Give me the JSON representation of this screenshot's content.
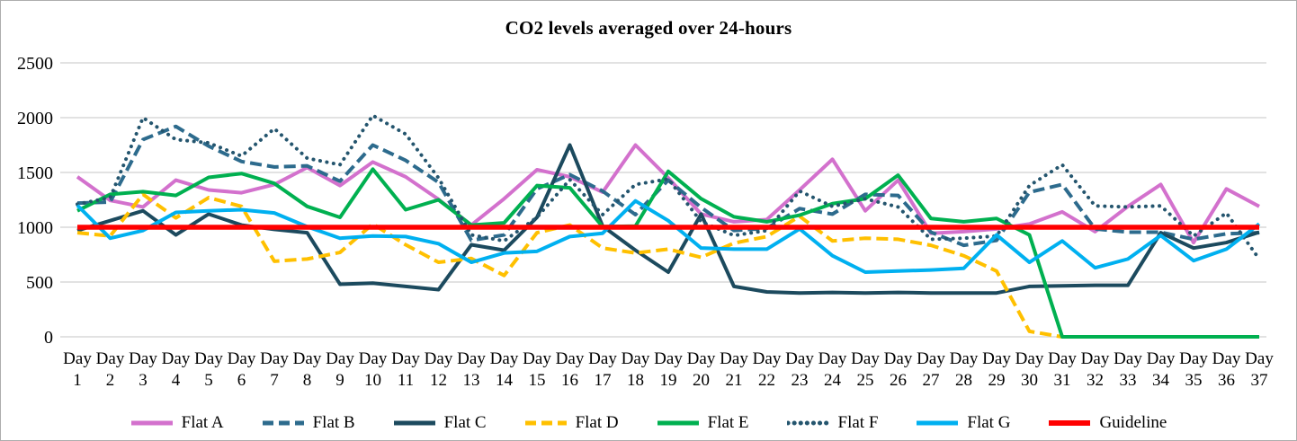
{
  "chart_data": {
    "type": "line",
    "title": "CO2 levels averaged over 24-hours",
    "x_label_prefix": "Day",
    "categories": [
      1,
      2,
      3,
      4,
      5,
      6,
      7,
      8,
      9,
      10,
      11,
      12,
      13,
      14,
      15,
      16,
      17,
      18,
      19,
      20,
      21,
      22,
      23,
      24,
      25,
      26,
      27,
      28,
      29,
      30,
      31,
      32,
      33,
      34,
      35,
      36,
      37
    ],
    "ylim": [
      0,
      2500
    ],
    "y_ticks": [
      0,
      500,
      1000,
      1500,
      2000,
      2500
    ],
    "grid": "horizontal",
    "grid_color": "#d9d9d9",
    "legend_position": "bottom",
    "guideline_value": 1000,
    "series": [
      {
        "name": "Flat A",
        "color": "#d371cd",
        "style": "solid",
        "values": [
          1460,
          1245,
          1185,
          1430,
          1340,
          1315,
          1390,
          1545,
          1380,
          1595,
          1460,
          1255,
          1020,
          1260,
          1525,
          1460,
          1320,
          1750,
          1450,
          1120,
          1050,
          1070,
          1340,
          1620,
          1150,
          1430,
          945,
          960,
          985,
          1030,
          1140,
          960,
          1190,
          1390,
          860,
          1350,
          1190
        ]
      },
      {
        "name": "Flat B",
        "color": "#2d6b8d",
        "style": "dashed",
        "values": [
          1220,
          1230,
          1800,
          1920,
          1740,
          1600,
          1550,
          1560,
          1420,
          1750,
          1610,
          1410,
          880,
          930,
          1350,
          1480,
          1330,
          1115,
          1430,
          1180,
          970,
          990,
          1170,
          1120,
          1300,
          1290,
          955,
          835,
          880,
          1320,
          1390,
          985,
          955,
          955,
          890,
          940,
          950
        ]
      },
      {
        "name": "Flat C",
        "color": "#1c4a5e",
        "style": "solid",
        "values": [
          970,
          1060,
          1150,
          930,
          1120,
          1020,
          980,
          950,
          480,
          490,
          460,
          430,
          840,
          790,
          1090,
          1750,
          1010,
          790,
          590,
          1120,
          460,
          410,
          400,
          405,
          400,
          405,
          400,
          400,
          400,
          460,
          465,
          470,
          470,
          950,
          810,
          860,
          955
        ]
      },
      {
        "name": "Flat D",
        "color": "#ffc000",
        "style": "dashed",
        "values": [
          950,
          920,
          1300,
          1085,
          1270,
          1190,
          690,
          710,
          770,
          1030,
          840,
          680,
          715,
          560,
          950,
          1020,
          810,
          765,
          800,
          725,
          855,
          915,
          1100,
          875,
          900,
          890,
          835,
          740,
          600,
          50,
          0,
          null,
          null,
          null,
          null,
          null,
          null
        ]
      },
      {
        "name": "Flat E",
        "color": "#00b050",
        "style": "solid",
        "values": [
          1150,
          1300,
          1325,
          1290,
          1455,
          1490,
          1400,
          1190,
          1090,
          1530,
          1160,
          1250,
          1020,
          1040,
          1380,
          1360,
          1005,
          1010,
          1510,
          1260,
          1095,
          1050,
          1110,
          1215,
          1260,
          1475,
          1080,
          1050,
          1080,
          930,
          0,
          0,
          0,
          0,
          0,
          0,
          0
        ]
      },
      {
        "name": "Flat F",
        "color": "#24556e",
        "style": "dotted",
        "values": [
          1210,
          1270,
          2000,
          1800,
          1770,
          1650,
          1900,
          1630,
          1570,
          2020,
          1850,
          1450,
          930,
          875,
          1090,
          1435,
          1115,
          1390,
          1440,
          1050,
          925,
          970,
          1330,
          1190,
          1260,
          1185,
          890,
          900,
          920,
          1380,
          1570,
          1195,
          1185,
          1195,
          920,
          1130,
          710
        ]
      },
      {
        "name": "Flat G",
        "color": "#00b0f0",
        "style": "solid",
        "values": [
          1200,
          900,
          970,
          1135,
          1150,
          1160,
          1130,
          1005,
          900,
          920,
          915,
          850,
          680,
          765,
          780,
          915,
          945,
          1240,
          1060,
          810,
          800,
          800,
          985,
          740,
          590,
          600,
          610,
          625,
          930,
          680,
          875,
          630,
          710,
          925,
          695,
          800,
          1030
        ]
      },
      {
        "name": "Guideline",
        "color": "#ff0000",
        "style": "solid",
        "is_guideline": true,
        "values": [
          1000,
          1000,
          1000,
          1000,
          1000,
          1000,
          1000,
          1000,
          1000,
          1000,
          1000,
          1000,
          1000,
          1000,
          1000,
          1000,
          1000,
          1000,
          1000,
          1000,
          1000,
          1000,
          1000,
          1000,
          1000,
          1000,
          1000,
          1000,
          1000,
          1000,
          1000,
          1000,
          1000,
          1000,
          1000,
          1000,
          1000
        ]
      }
    ]
  }
}
